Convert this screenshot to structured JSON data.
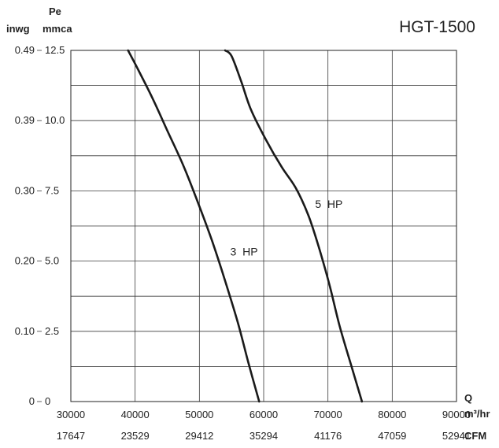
{
  "chart_data": {
    "type": "line",
    "title": "HGT-1500",
    "y_unit_primary": "mmca",
    "y_param_label": "Pe",
    "y_unit_secondary": "inwg",
    "x_param_label": "Q",
    "x_unit_primary": "m³/hr",
    "x_unit_secondary": "CFM",
    "xlim": [
      30000,
      90000
    ],
    "ylim": [
      0,
      12.5
    ],
    "x_ticks": [
      "30000",
      "40000",
      "50000",
      "60000",
      "70000",
      "80000",
      "90000"
    ],
    "x_ticks_cfm": [
      "17647",
      "23529",
      "29412",
      "35294",
      "41176",
      "47059",
      "52941"
    ],
    "y_ticks": [
      "0",
      "2.5",
      "5.0",
      "7.5",
      "10.0",
      "12.5"
    ],
    "y_ticks_inwg": [
      "0",
      "0.10",
      "0.20",
      "0.30",
      "0.39",
      "0.49"
    ],
    "grid": true,
    "series": [
      {
        "name": "3 HP",
        "points": [
          [
            38900,
            12.5
          ],
          [
            40500,
            11.8
          ],
          [
            42700,
            10.8
          ],
          [
            45100,
            9.6
          ],
          [
            47600,
            8.35
          ],
          [
            50000,
            6.95
          ],
          [
            52000,
            5.7
          ],
          [
            54000,
            4.3
          ],
          [
            56000,
            2.8
          ],
          [
            57600,
            1.4
          ],
          [
            59300,
            0
          ]
        ]
      },
      {
        "name": "5 HP",
        "points": [
          [
            54000,
            12.5
          ],
          [
            55000,
            12.3
          ],
          [
            56500,
            11.4
          ],
          [
            58000,
            10.4
          ],
          [
            60400,
            9.3
          ],
          [
            62800,
            8.35
          ],
          [
            65000,
            7.6
          ],
          [
            67000,
            6.6
          ],
          [
            68700,
            5.4
          ],
          [
            70300,
            4.1
          ],
          [
            71800,
            2.7
          ],
          [
            73600,
            1.3
          ],
          [
            75300,
            0
          ]
        ]
      }
    ]
  }
}
